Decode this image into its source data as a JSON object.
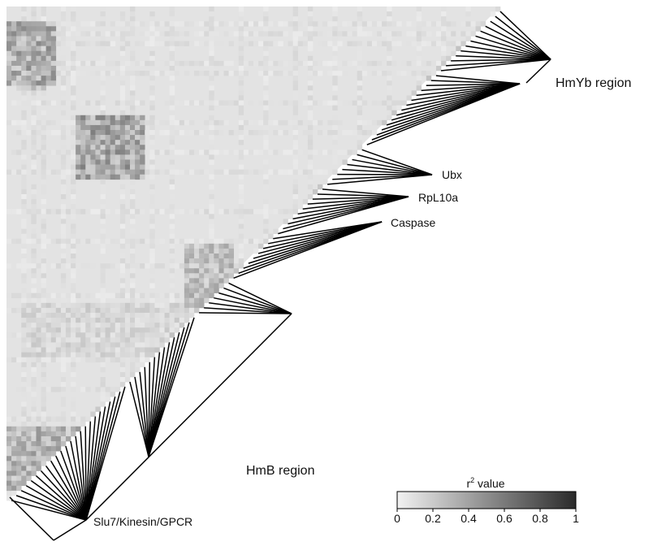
{
  "chart_data": {
    "type": "heatmap",
    "title": "",
    "matrix_shape": "lower-triangular",
    "marker_count": 100,
    "regions": [
      {
        "label": "HmYb region"
      },
      {
        "label": "HmB region"
      }
    ],
    "genes": [
      {
        "label": "Ubx"
      },
      {
        "label": "RpL10a"
      },
      {
        "label": "Caspase"
      },
      {
        "label": "Slu7/Kinesin/GPCR"
      }
    ],
    "colorbar": {
      "title_base": "r",
      "title_sup": "2",
      "title_rest": " value",
      "min": 0,
      "max": 1,
      "ticks": [
        "0",
        "0.2",
        "0.4",
        "0.6",
        "0.8",
        "1"
      ],
      "color_low": "#f2f2f2",
      "color_high": "#2a2a2a"
    },
    "baseline_color": "#e3e3e3",
    "high_ld_blocks": [
      {
        "rows": [
          3,
          15
        ],
        "cols": [
          0,
          9
        ],
        "r2": 0.75
      },
      {
        "rows": [
          22,
          34
        ],
        "cols": [
          14,
          27
        ],
        "r2": 0.8
      },
      {
        "rows": [
          48,
          60
        ],
        "cols": [
          36,
          45
        ],
        "r2": 0.55
      },
      {
        "rows": [
          85,
          97
        ],
        "cols": [
          0,
          14
        ],
        "r2": 0.65
      },
      {
        "rows": [
          60,
          70
        ],
        "cols": [
          3,
          40
        ],
        "r2": 0.3
      },
      {
        "rows": [
          5,
          16
        ],
        "cols": [
          2,
          7
        ],
        "r2": 0.5
      }
    ]
  }
}
